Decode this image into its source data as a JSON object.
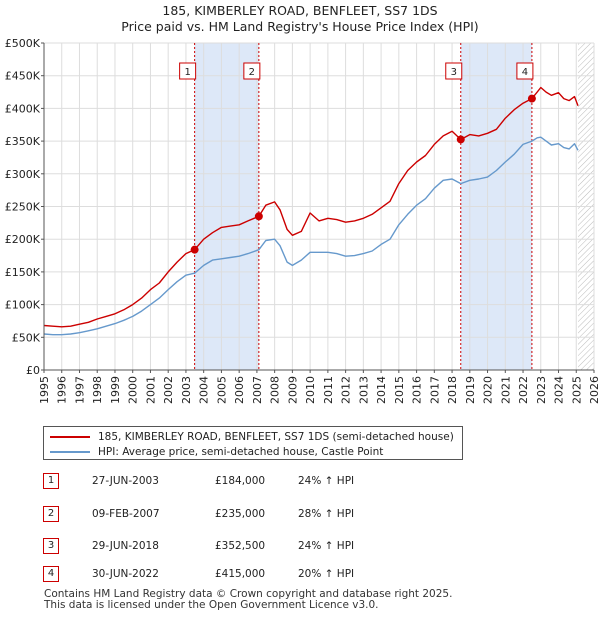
{
  "title_line1": "185, KIMBERLEY ROAD, BENFLEET, SS7 1DS",
  "title_line2": "Price paid vs. HM Land Registry's House Price Index (HPI)",
  "colors": {
    "property": "#cc0000",
    "hpi": "#6699cc",
    "band": "#dde8f8",
    "grid": "#dddddd",
    "hatch": "#bbbbbb"
  },
  "legend": [
    {
      "label": "185, KIMBERLEY ROAD, BENFLEET, SS7 1DS (semi-detached house)",
      "color": "#cc0000"
    },
    {
      "label": "HPI: Average price, semi-detached house, Castle Point",
      "color": "#6699cc"
    }
  ],
  "sales": [
    {
      "num": "1",
      "date": "27-JUN-2003",
      "price": "£184,000",
      "hpi": "24% ↑ HPI"
    },
    {
      "num": "2",
      "date": "09-FEB-2007",
      "price": "£235,000",
      "hpi": "28% ↑ HPI"
    },
    {
      "num": "3",
      "date": "29-JUN-2018",
      "price": "£352,500",
      "hpi": "24% ↑ HPI"
    },
    {
      "num": "4",
      "date": "30-JUN-2022",
      "price": "£415,000",
      "hpi": "20% ↑ HPI"
    }
  ],
  "footer_line1": "Contains HM Land Registry data © Crown copyright and database right 2025.",
  "footer_line2": "This data is licensed under the Open Government Licence v3.0.",
  "chart_data": {
    "type": "line",
    "title": "185, KIMBERLEY ROAD, BENFLEET, SS7 1DS — Price paid vs. HM Land Registry's House Price Index (HPI)",
    "xlabel": "",
    "ylabel": "",
    "xlim": [
      1995,
      2026
    ],
    "ylim": [
      0,
      500000
    ],
    "x_ticks": [
      1995,
      1996,
      1997,
      1998,
      1999,
      2000,
      2001,
      2002,
      2003,
      2004,
      2005,
      2006,
      2007,
      2008,
      2009,
      2010,
      2011,
      2012,
      2013,
      2014,
      2015,
      2016,
      2017,
      2018,
      2019,
      2020,
      2021,
      2022,
      2023,
      2024,
      2025,
      2026
    ],
    "y_ticks": [
      {
        "value": 0,
        "label": "£0"
      },
      {
        "value": 50000,
        "label": "£50K"
      },
      {
        "value": 100000,
        "label": "£100K"
      },
      {
        "value": 150000,
        "label": "£150K"
      },
      {
        "value": 200000,
        "label": "£200K"
      },
      {
        "value": 250000,
        "label": "£250K"
      },
      {
        "value": 300000,
        "label": "£300K"
      },
      {
        "value": 350000,
        "label": "£350K"
      },
      {
        "value": 400000,
        "label": "£400K"
      },
      {
        "value": 450000,
        "label": "£450K"
      },
      {
        "value": 500000,
        "label": "£500K"
      }
    ],
    "grid": true,
    "shaded_periods": [
      [
        2003.49,
        2007.11
      ],
      [
        2018.49,
        2022.5
      ]
    ],
    "future_hatch_from": 2025.1,
    "series": [
      {
        "name": "185, KIMBERLEY ROAD, BENFLEET, SS7 1DS (semi-detached house)",
        "color": "#cc0000",
        "x": [
          1995.0,
          1995.5,
          1996.0,
          1996.5,
          1997.0,
          1997.5,
          1998.0,
          1998.5,
          1999.0,
          1999.5,
          2000.0,
          2000.5,
          2001.0,
          2001.5,
          2002.0,
          2002.5,
          2003.0,
          2003.49,
          2004.0,
          2004.5,
          2005.0,
          2005.5,
          2006.0,
          2006.5,
          2007.11,
          2007.5,
          2008.0,
          2008.3,
          2008.7,
          2009.0,
          2009.5,
          2010.0,
          2010.5,
          2011.0,
          2011.5,
          2012.0,
          2012.5,
          2013.0,
          2013.5,
          2014.0,
          2014.5,
          2015.0,
          2015.5,
          2016.0,
          2016.5,
          2017.0,
          2017.5,
          2018.0,
          2018.49,
          2019.0,
          2019.5,
          2020.0,
          2020.5,
          2021.0,
          2021.5,
          2022.0,
          2022.5,
          2022.8,
          2023.0,
          2023.3,
          2023.6,
          2024.0,
          2024.3,
          2024.6,
          2024.9,
          2025.1
        ],
        "values": [
          68000,
          67000,
          66000,
          67000,
          70000,
          73000,
          78000,
          82000,
          86000,
          92000,
          100000,
          110000,
          123000,
          133000,
          150000,
          165000,
          178000,
          184000,
          200000,
          210000,
          218000,
          220000,
          222000,
          228000,
          235000,
          252000,
          257000,
          245000,
          215000,
          206000,
          212000,
          240000,
          228000,
          232000,
          230000,
          226000,
          228000,
          232000,
          238000,
          248000,
          258000,
          285000,
          305000,
          318000,
          328000,
          345000,
          358000,
          365000,
          352500,
          360000,
          358000,
          362000,
          368000,
          385000,
          398000,
          408000,
          415000,
          425000,
          432000,
          425000,
          420000,
          424000,
          415000,
          412000,
          418000,
          404000
        ]
      },
      {
        "name": "HPI: Average price, semi-detached house, Castle Point",
        "color": "#6699cc",
        "x": [
          1995.0,
          1995.5,
          1996.0,
          1996.5,
          1997.0,
          1997.5,
          1998.0,
          1998.5,
          1999.0,
          1999.5,
          2000.0,
          2000.5,
          2001.0,
          2001.5,
          2002.0,
          2002.5,
          2003.0,
          2003.49,
          2004.0,
          2004.5,
          2005.0,
          2005.5,
          2006.0,
          2006.5,
          2007.11,
          2007.5,
          2008.0,
          2008.3,
          2008.7,
          2009.0,
          2009.5,
          2010.0,
          2010.5,
          2011.0,
          2011.5,
          2012.0,
          2012.5,
          2013.0,
          2013.5,
          2014.0,
          2014.5,
          2015.0,
          2015.5,
          2016.0,
          2016.5,
          2017.0,
          2017.5,
          2018.0,
          2018.49,
          2019.0,
          2019.5,
          2020.0,
          2020.5,
          2021.0,
          2021.5,
          2022.0,
          2022.5,
          2022.8,
          2023.0,
          2023.3,
          2023.6,
          2024.0,
          2024.3,
          2024.6,
          2024.9,
          2025.1
        ],
        "values": [
          55000,
          54000,
          54000,
          55000,
          57000,
          60000,
          63000,
          67000,
          71000,
          76000,
          82000,
          90000,
          100000,
          110000,
          123000,
          135000,
          145000,
          148000,
          160000,
          168000,
          170000,
          172000,
          174000,
          178000,
          184000,
          198000,
          200000,
          190000,
          165000,
          160000,
          168000,
          180000,
          180000,
          180000,
          178000,
          174000,
          175000,
          178000,
          182000,
          192000,
          200000,
          222000,
          238000,
          252000,
          262000,
          278000,
          290000,
          292000,
          285000,
          290000,
          292000,
          295000,
          305000,
          318000,
          330000,
          345000,
          350000,
          355000,
          356000,
          350000,
          344000,
          346000,
          340000,
          338000,
          346000,
          336000
        ]
      }
    ],
    "sale_points": [
      {
        "num": "1",
        "x": 2003.49,
        "value": 184000
      },
      {
        "num": "2",
        "x": 2007.11,
        "value": 235000
      },
      {
        "num": "3",
        "x": 2018.49,
        "value": 352500
      },
      {
        "num": "4",
        "x": 2022.5,
        "value": 415000
      }
    ]
  }
}
